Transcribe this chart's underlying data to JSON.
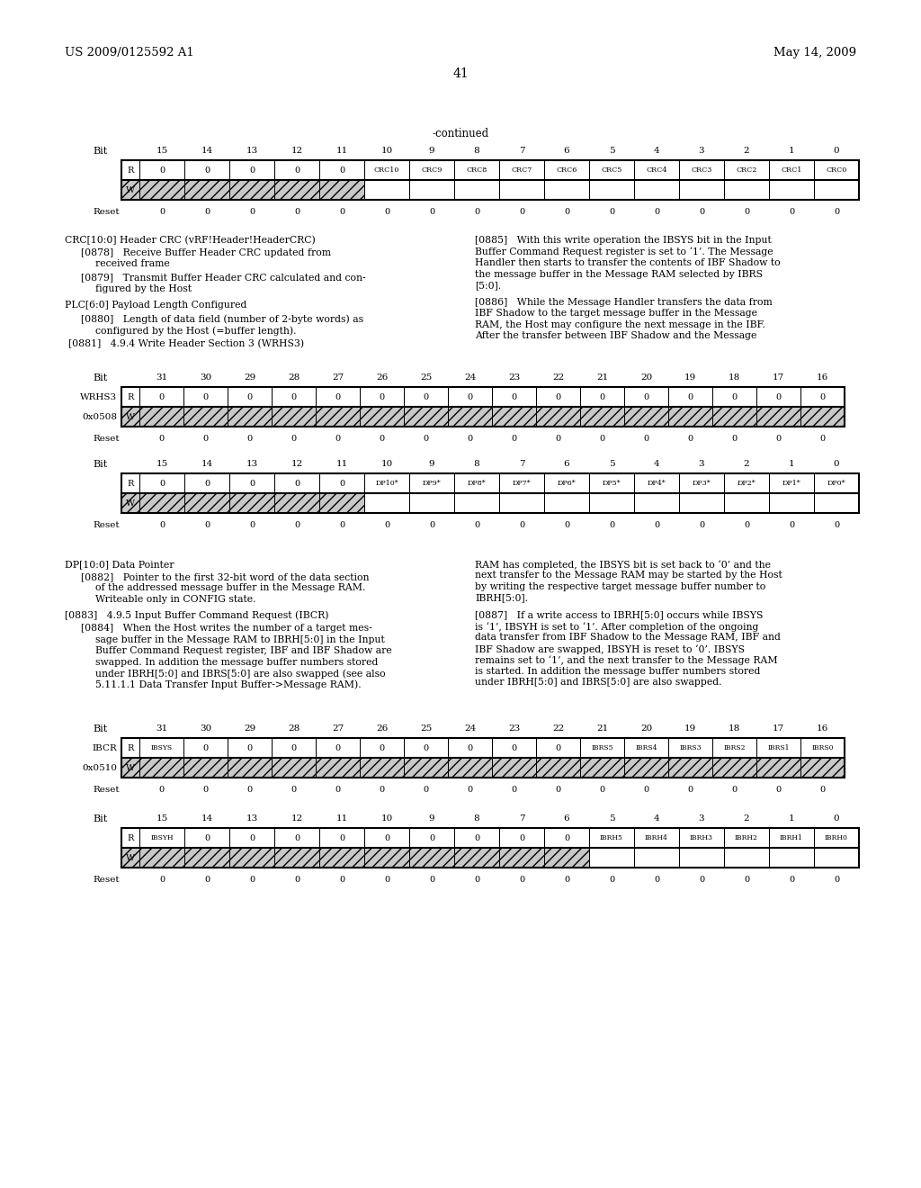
{
  "page_header_left": "US 2009/0125592 A1",
  "page_header_right": "May 14, 2009",
  "page_number": "41",
  "bg_color": "#ffffff"
}
